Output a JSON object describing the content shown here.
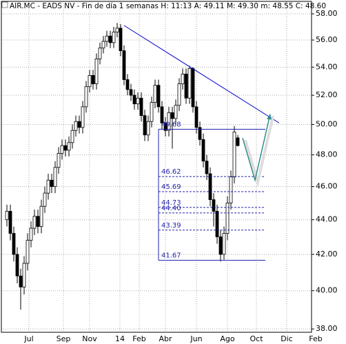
{
  "chart_data": {
    "type": "candlestick",
    "title": "AIR.MC - EADS NV - Fin de día 1 semanas  H: 11:13  A: 49.11  M: 49.30  m: 48.55  C: 48.60",
    "log_scale": true,
    "grid": true,
    "xlim": [
      -1.6,
      88.4
    ],
    "ylim": [
      37.83,
      58.98
    ],
    "xticks": [
      {
        "value": 6.4,
        "label": "Jul"
      },
      {
        "value": 16.4,
        "label": "Sep"
      },
      {
        "value": 24,
        "label": "Nov"
      },
      {
        "value": 32.8,
        "label": "14"
      },
      {
        "value": 38.4,
        "label": "Feb"
      },
      {
        "value": 46,
        "label": "Abr"
      },
      {
        "value": 55,
        "label": "Jun"
      },
      {
        "value": 64,
        "label": "Ago"
      },
      {
        "value": 72.4,
        "label": "Oct"
      },
      {
        "value": 81.2,
        "label": "Dic"
      },
      {
        "value": 89.6,
        "label": "Feb"
      }
    ],
    "yticks": [
      {
        "value": 38,
        "label": "38.00"
      },
      {
        "value": 40,
        "label": "40.00"
      },
      {
        "value": 42,
        "label": "42.00"
      },
      {
        "value": 44,
        "label": "44.00"
      },
      {
        "value": 46,
        "label": "46.00"
      },
      {
        "value": 48,
        "label": "48.00"
      },
      {
        "value": 50,
        "label": "50.00"
      },
      {
        "value": 52,
        "label": "52.00"
      },
      {
        "value": 54,
        "label": "54.00"
      },
      {
        "value": 56,
        "label": "56.00"
      },
      {
        "value": 58,
        "label": "58.00"
      }
    ],
    "x": [
      0,
      1,
      2,
      3,
      4,
      5,
      6,
      7,
      8,
      9,
      10,
      11,
      12,
      13,
      14,
      15,
      16,
      17,
      18,
      19,
      20,
      21,
      22,
      23,
      24,
      25,
      26,
      27,
      28,
      29,
      30,
      31,
      32,
      33,
      34,
      35,
      36,
      37,
      38,
      39,
      40,
      41,
      42,
      43,
      44,
      45,
      46,
      47,
      48,
      49,
      50,
      51,
      52,
      53,
      54,
      55,
      56,
      57,
      58,
      59,
      60,
      61,
      62,
      63,
      64,
      65,
      66,
      67
    ],
    "open": [
      44.0,
      44.5,
      43.2,
      42.0,
      40.8,
      40.2,
      41.5,
      42.8,
      43.5,
      44.2,
      43.6,
      44.8,
      45.6,
      46.4,
      46.0,
      47.2,
      48.1,
      48.6,
      48.3,
      48.8,
      49.6,
      50.2,
      49.8,
      51.2,
      52.6,
      53.4,
      52.8,
      54.6,
      55.4,
      55.9,
      56.3,
      55.8,
      56.6,
      56.9,
      55.2,
      53.1,
      52.4,
      52.0,
      51.4,
      51.8,
      50.6,
      49.3,
      50.2,
      51.5,
      52.7,
      51.2,
      50.1,
      49.6,
      50.8,
      50.4,
      51.3,
      52.8,
      53.5,
      51.8,
      53.9,
      51.2,
      49.8,
      49.0,
      47.6,
      46.8,
      45.2,
      44.5,
      43.0,
      42.0,
      43.2,
      45.0,
      46.6,
      49.11
    ],
    "high": [
      44.9,
      44.9,
      43.6,
      42.4,
      41.2,
      41.9,
      43.2,
      43.9,
      44.6,
      44.6,
      45.2,
      46.0,
      46.8,
      46.8,
      47.6,
      48.5,
      49.0,
      49.0,
      49.2,
      50.0,
      50.6,
      50.6,
      51.6,
      53.0,
      53.8,
      53.8,
      55.0,
      55.8,
      56.3,
      56.7,
      56.7,
      57.0,
      57.3,
      57.2,
      55.6,
      53.5,
      52.8,
      52.4,
      52.2,
      52.2,
      51.0,
      50.6,
      51.9,
      53.1,
      53.1,
      51.6,
      50.5,
      51.2,
      51.2,
      51.7,
      53.2,
      53.9,
      53.9,
      54.1,
      54.0,
      51.6,
      50.2,
      49.4,
      48.0,
      47.2,
      45.6,
      44.9,
      43.4,
      43.6,
      45.4,
      47.0,
      49.9,
      49.3
    ],
    "low": [
      43.6,
      42.8,
      41.6,
      40.4,
      39.0,
      39.8,
      41.1,
      42.4,
      43.1,
      43.2,
      43.2,
      44.4,
      45.2,
      45.6,
      45.6,
      46.8,
      47.7,
      47.9,
      47.9,
      48.4,
      49.2,
      49.4,
      49.4,
      50.8,
      52.2,
      52.4,
      52.4,
      54.2,
      55.0,
      55.5,
      55.4,
      55.4,
      56.2,
      54.8,
      52.7,
      52.0,
      51.6,
      51.0,
      51.0,
      50.2,
      48.9,
      48.9,
      49.8,
      51.1,
      50.8,
      49.7,
      49.2,
      49.2,
      48.4,
      50.0,
      50.9,
      52.4,
      51.4,
      51.4,
      50.8,
      49.4,
      48.6,
      47.2,
      46.4,
      44.8,
      43.6,
      42.6,
      41.6,
      41.7,
      42.8,
      44.6,
      46.2,
      48.55
    ],
    "close": [
      44.5,
      43.2,
      42.0,
      40.8,
      40.2,
      41.5,
      42.8,
      43.5,
      44.2,
      43.6,
      44.8,
      45.6,
      46.4,
      46.0,
      47.2,
      48.1,
      48.6,
      48.3,
      48.8,
      49.6,
      50.2,
      49.8,
      51.2,
      52.6,
      53.4,
      52.8,
      54.6,
      55.4,
      55.9,
      56.3,
      55.8,
      56.6,
      56.9,
      55.2,
      53.1,
      52.4,
      52.0,
      51.4,
      51.8,
      50.6,
      49.3,
      50.2,
      51.5,
      52.7,
      51.2,
      50.1,
      49.6,
      50.8,
      50.4,
      51.3,
      52.8,
      53.5,
      51.8,
      53.9,
      51.2,
      49.8,
      49.0,
      47.6,
      46.8,
      45.2,
      44.5,
      43.0,
      42.0,
      43.2,
      45.0,
      46.6,
      49.5,
      48.6
    ],
    "level_span": [
      44,
      75
    ],
    "levels": [
      {
        "value": 49.68,
        "label": "49.68",
        "style": "solid"
      },
      {
        "value": 46.62,
        "label": "46.62",
        "style": "dashed"
      },
      {
        "value": 45.69,
        "label": "45.69",
        "style": "dashed"
      },
      {
        "value": 44.73,
        "label": "44.73",
        "style": "dashed"
      },
      {
        "value": 44.4,
        "label": "44.40",
        "style": "dashed"
      },
      {
        "value": 43.39,
        "label": "43.39",
        "style": "dashed"
      },
      {
        "value": 41.67,
        "label": "41.67",
        "style": "solid"
      }
    ],
    "trendline": {
      "x": [
        34,
        79
      ],
      "y": [
        57.1,
        50.1
      ],
      "color": "#0000cc"
    },
    "projection": {
      "x": [
        68.4,
        72,
        76.4
      ],
      "y": [
        49.1,
        46.4,
        50.7
      ],
      "color": "#2e8b8b"
    }
  }
}
